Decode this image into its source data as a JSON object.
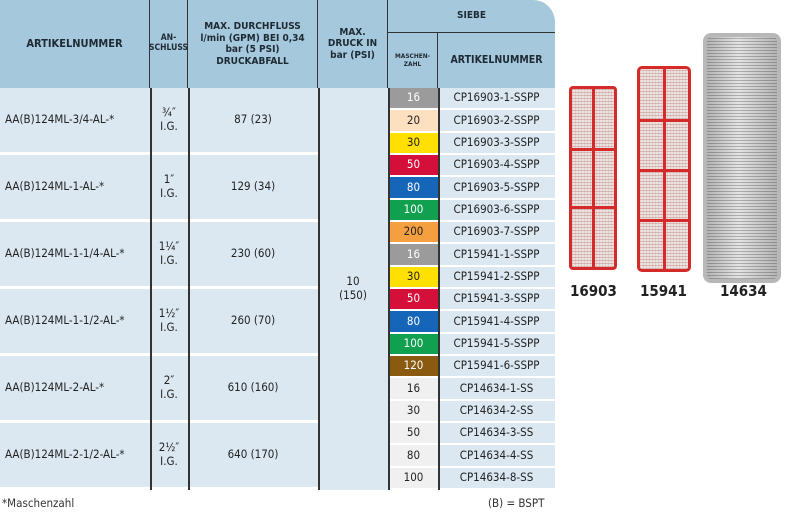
{
  "header": {
    "artikelnummer": "ARTIKELNUMMER",
    "anschluss": "AN-\nSCHLUSS",
    "durchfluss": "MAX. DURCHFLUSS l/min (GPM) BEI 0,34 bar (5 PSI) DRUCKABFALL",
    "druck": "MAX. DRUCK IN bar (PSI)",
    "siebe": "SIEBE",
    "maschenzahl": "MASCHEN-ZAHL",
    "siebe_artikelnummer": "ARTIKELNUMMER"
  },
  "pressure": "10\n(150)",
  "groups": [
    {
      "artikel": "AA(B)124ML-3/4-AL-*",
      "anschluss": "¾″\nI.G.",
      "flow": "87 (23)"
    },
    {
      "artikel": "AA(B)124ML-1-AL-*",
      "anschluss": "1″\nI.G.",
      "flow": "129 (34)"
    },
    {
      "artikel": "AA(B)124ML-1-1/4-AL-*",
      "anschluss": "1¼″\nI.G.",
      "flow": "230 (60)"
    },
    {
      "artikel": "AA(B)124ML-1-1/2-AL-*",
      "anschluss": "1½″\nI.G.",
      "flow": "260 (70)"
    },
    {
      "artikel": "AA(B)124ML-2-AL-*",
      "anschluss": "2″\nI.G.",
      "flow": "610 (160)"
    },
    {
      "artikel": "AA(B)124ML-2-1/2-AL-*",
      "anschluss": "2½″\nI.G.",
      "flow": "640 (170)"
    }
  ],
  "screens": [
    {
      "mesh": "16",
      "part": "CP16903-1-SSPP",
      "bg": "#9b9b9b",
      "fg": "#ffffff"
    },
    {
      "mesh": "20",
      "part": "CP16903-2-SSPP",
      "bg": "#fde0c0",
      "fg": "#222222"
    },
    {
      "mesh": "30",
      "part": "CP16903-3-SSPP",
      "bg": "#ffe000",
      "fg": "#222222"
    },
    {
      "mesh": "50",
      "part": "CP16903-4-SSPP",
      "bg": "#d4103a",
      "fg": "#ffffff"
    },
    {
      "mesh": "80",
      "part": "CP16903-5-SSPP",
      "bg": "#1565b8",
      "fg": "#ffffff"
    },
    {
      "mesh": "100",
      "part": "CP16903-6-SSPP",
      "bg": "#10a050",
      "fg": "#ffffff"
    },
    {
      "mesh": "200",
      "part": "CP16903-7-SSPP",
      "bg": "#f5a040",
      "fg": "#222222"
    },
    {
      "mesh": "16",
      "part": "CP15941-1-SSPP",
      "bg": "#9b9b9b",
      "fg": "#ffffff"
    },
    {
      "mesh": "30",
      "part": "CP15941-2-SSPP",
      "bg": "#ffe000",
      "fg": "#222222"
    },
    {
      "mesh": "50",
      "part": "CP15941-3-SSPP",
      "bg": "#d4103a",
      "fg": "#ffffff"
    },
    {
      "mesh": "80",
      "part": "CP15941-4-SSPP",
      "bg": "#1565b8",
      "fg": "#ffffff"
    },
    {
      "mesh": "100",
      "part": "CP15941-5-SSPP",
      "bg": "#10a050",
      "fg": "#ffffff"
    },
    {
      "mesh": "120",
      "part": "CP15941-6-SSPP",
      "bg": "#8a5a10",
      "fg": "#ffffff"
    },
    {
      "mesh": "16",
      "part": "CP14634-1-SS",
      "bg": "#f0f0f0",
      "fg": "#222222"
    },
    {
      "mesh": "30",
      "part": "CP14634-2-SS",
      "bg": "#f0f0f0",
      "fg": "#222222"
    },
    {
      "mesh": "50",
      "part": "CP14634-3-SS",
      "bg": "#f0f0f0",
      "fg": "#222222"
    },
    {
      "mesh": "80",
      "part": "CP14634-4-SS",
      "bg": "#f0f0f0",
      "fg": "#222222"
    },
    {
      "mesh": "100",
      "part": "CP14634-8-SS",
      "bg": "#f0f0f0",
      "fg": "#222222"
    }
  ],
  "images": {
    "a": "16903",
    "b": "15941",
    "c": "14634"
  },
  "footer": {
    "left": "*Maschenzahl",
    "right": "(B) = BSPT"
  }
}
